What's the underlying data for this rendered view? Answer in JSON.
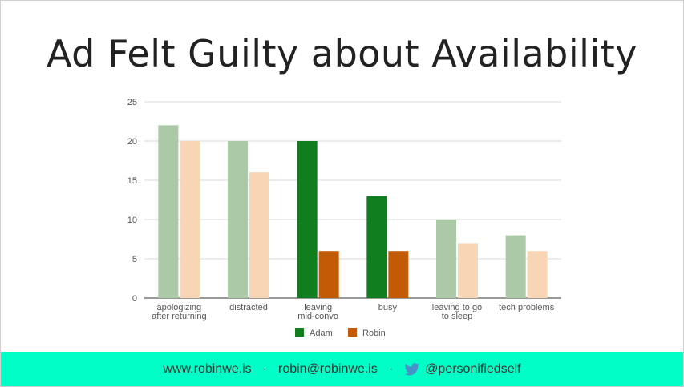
{
  "slide": {
    "title": "Ad Felt Guilty about Availability"
  },
  "footer": {
    "website": "www.robinwe.is",
    "separator": "·",
    "email": "robin@robinwe.is",
    "twitter": "@personifiedself",
    "twitter_icon": "twitter-bird-icon",
    "background": "#00ffc6"
  },
  "chart_data": {
    "type": "bar",
    "categories": [
      [
        "apologizing",
        "after returning"
      ],
      [
        "distracted"
      ],
      [
        "leaving",
        "mid-convo"
      ],
      [
        "busy"
      ],
      [
        "leaving to go",
        "to sleep"
      ],
      [
        "tech problems"
      ]
    ],
    "series": [
      {
        "name": "Adam",
        "values": [
          22,
          20,
          20,
          13,
          10,
          8
        ],
        "colors": [
          "#abc8a7",
          "#abc8a7",
          "#107e1f",
          "#107e1f",
          "#abc8a7",
          "#abc8a7"
        ]
      },
      {
        "name": "Robin",
        "values": [
          20,
          16,
          6,
          6,
          7,
          6
        ],
        "colors": [
          "#f8d5b4",
          "#f8d5b4",
          "#c35a06",
          "#c35a06",
          "#f8d5b4",
          "#f8d5b4"
        ]
      }
    ],
    "legend": [
      {
        "name": "Adam",
        "color": "#107e1f"
      },
      {
        "name": "Robin",
        "color": "#c35a06"
      }
    ],
    "legend_position": "bottom",
    "ylim": [
      0,
      25
    ],
    "yticks": [
      0,
      5,
      10,
      15,
      20,
      25
    ],
    "grid": true,
    "xlabel": "",
    "ylabel": ""
  }
}
